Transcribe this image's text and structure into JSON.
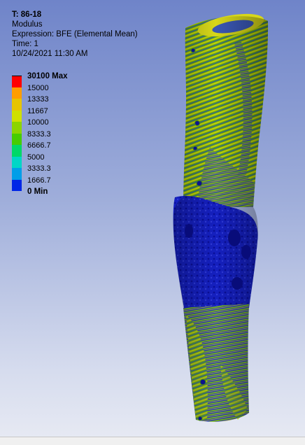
{
  "header": {
    "title": "T: 86-18",
    "result_type": "Modulus",
    "expression": "Expression: BFE (Elemental Mean)",
    "time": "Time: 1",
    "timestamp": "10/24/2021 11:30 AM"
  },
  "legend": {
    "entries": [
      {
        "label": "30100 Max",
        "color": "#ff0000",
        "bold": true
      },
      {
        "label": "15000",
        "color": "#ff9d00",
        "bold": false
      },
      {
        "label": "13333",
        "color": "#e6c400",
        "bold": false
      },
      {
        "label": "11667",
        "color": "#cfe000",
        "bold": false
      },
      {
        "label": "10000",
        "color": "#8cd400",
        "bold": false
      },
      {
        "label": "8333.3",
        "color": "#46cc00",
        "bold": false
      },
      {
        "label": "6666.7",
        "color": "#00d868",
        "bold": false
      },
      {
        "label": "5000",
        "color": "#00d6c6",
        "bold": false
      },
      {
        "label": "3333.3",
        "color": "#009ee8",
        "bold": false
      },
      {
        "label": "1666.7",
        "color": "#0026e6",
        "bold": false
      },
      {
        "label": "0 Min",
        "color": "#0000ff",
        "bold": true
      }
    ]
  },
  "model": {
    "name": "bone modulus contour",
    "colors": {
      "cortex_green": "#5aa800",
      "cortex_yellow": "#c9cf12",
      "fracture_blue": "#1a20c4",
      "deep_blue": "#0b10a0"
    }
  }
}
